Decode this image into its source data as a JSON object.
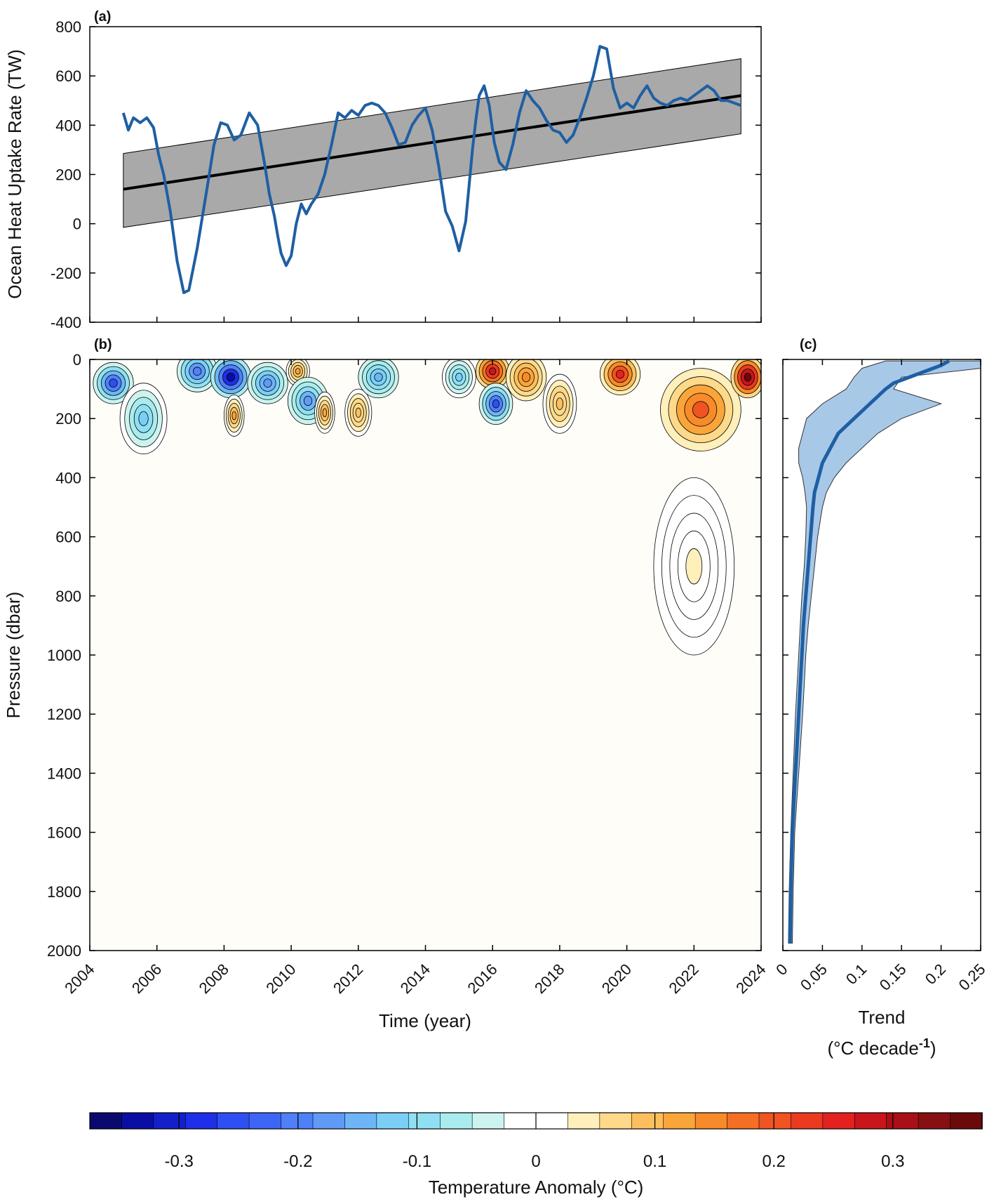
{
  "chart_data": [
    {
      "panel": "(a)",
      "type": "line",
      "ylabel": "Ocean Heat Uptake Rate (TW)",
      "xlim": [
        2004,
        2024
      ],
      "ylim": [
        -400,
        800
      ],
      "yticks": [
        -400,
        -200,
        0,
        200,
        400,
        600,
        800
      ],
      "series": [
        {
          "name": "Ocean heat uptake rate",
          "color": "#1f5fa3",
          "x": [
            2005.0,
            2005.15,
            2005.3,
            2005.5,
            2005.7,
            2005.9,
            2006.05,
            2006.2,
            2006.4,
            2006.6,
            2006.8,
            2006.95,
            2007.2,
            2007.5,
            2007.7,
            2007.9,
            2008.1,
            2008.3,
            2008.5,
            2008.75,
            2009.0,
            2009.2,
            2009.35,
            2009.5,
            2009.6,
            2009.7,
            2009.85,
            2010.0,
            2010.15,
            2010.3,
            2010.45,
            2010.6,
            2010.8,
            2011.0,
            2011.2,
            2011.4,
            2011.6,
            2011.8,
            2012.0,
            2012.2,
            2012.4,
            2012.6,
            2012.8,
            2013.0,
            2013.2,
            2013.4,
            2013.6,
            2013.8,
            2014.0,
            2014.2,
            2014.4,
            2014.6,
            2014.8,
            2015.0,
            2015.2,
            2015.4,
            2015.5,
            2015.6,
            2015.75,
            2015.9,
            2016.05,
            2016.2,
            2016.4,
            2016.6,
            2016.8,
            2017.0,
            2017.2,
            2017.4,
            2017.6,
            2017.8,
            2018.0,
            2018.2,
            2018.4,
            2018.6,
            2018.8,
            2019.0,
            2019.2,
            2019.4,
            2019.6,
            2019.8,
            2020.0,
            2020.2,
            2020.4,
            2020.6,
            2020.8,
            2021.0,
            2021.2,
            2021.4,
            2021.6,
            2021.8,
            2022.0,
            2022.2,
            2022.4,
            2022.6,
            2022.8,
            2023.0,
            2023.2,
            2023.4
          ],
          "y": [
            450,
            380,
            430,
            410,
            430,
            390,
            280,
            200,
            50,
            -150,
            -280,
            -270,
            -100,
            150,
            320,
            410,
            400,
            340,
            360,
            450,
            400,
            250,
            120,
            30,
            -50,
            -120,
            -170,
            -130,
            0,
            80,
            40,
            80,
            120,
            200,
            320,
            450,
            430,
            460,
            440,
            480,
            490,
            480,
            450,
            390,
            320,
            330,
            400,
            440,
            470,
            380,
            230,
            50,
            -10,
            -110,
            10,
            300,
            420,
            520,
            560,
            480,
            330,
            250,
            220,
            320,
            450,
            540,
            500,
            470,
            420,
            380,
            370,
            330,
            360,
            430,
            510,
            600,
            720,
            710,
            550,
            470,
            490,
            470,
            520,
            560,
            510,
            490,
            480,
            500,
            510,
            500,
            520,
            540,
            560,
            540,
            500,
            500,
            490,
            480
          ]
        },
        {
          "name": "Linear trend",
          "color": "#000000",
          "x": [
            2005.0,
            2023.4
          ],
          "y": [
            140,
            520
          ]
        }
      ],
      "confidence_band": {
        "color": "#a9a9a9",
        "x": [
          2005.0,
          2023.4
        ],
        "upper": [
          285,
          670
        ],
        "lower": [
          -15,
          365
        ]
      }
    },
    {
      "panel": "(b)",
      "type": "heatmap",
      "xlabel": "Time (year)",
      "ylabel": "Pressure (dbar)",
      "xlim": [
        2004,
        2024
      ],
      "ylim": [
        2000,
        0
      ],
      "xticks": [
        2004,
        2006,
        2008,
        2010,
        2012,
        2014,
        2016,
        2018,
        2020,
        2022,
        2024
      ],
      "yticks": [
        0,
        200,
        400,
        600,
        800,
        1000,
        1200,
        1400,
        1600,
        1800,
        2000
      ],
      "anomaly_features": [
        {
          "t": 2004.7,
          "p": 80,
          "v": -0.26,
          "wt": 0.6,
          "wp": 70
        },
        {
          "t": 2005.6,
          "p": 200,
          "v": -0.13,
          "wt": 0.7,
          "wp": 120
        },
        {
          "t": 2007.2,
          "p": 40,
          "v": -0.21,
          "wt": 0.6,
          "wp": 70
        },
        {
          "t": 2008.2,
          "p": 60,
          "v": -0.34,
          "wt": 0.6,
          "wp": 70
        },
        {
          "t": 2008.3,
          "p": 190,
          "v": 0.13,
          "wt": 0.3,
          "wp": 70
        },
        {
          "t": 2009.3,
          "p": 80,
          "v": -0.18,
          "wt": 0.6,
          "wp": 70
        },
        {
          "t": 2010.2,
          "p": 40,
          "v": 0.11,
          "wt": 0.35,
          "wp": 50
        },
        {
          "t": 2010.5,
          "p": 140,
          "v": -0.17,
          "wt": 0.6,
          "wp": 80
        },
        {
          "t": 2011.0,
          "p": 180,
          "v": 0.12,
          "wt": 0.3,
          "wp": 70
        },
        {
          "t": 2012.0,
          "p": 180,
          "v": 0.1,
          "wt": 0.4,
          "wp": 80
        },
        {
          "t": 2012.6,
          "p": 60,
          "v": -0.16,
          "wt": 0.6,
          "wp": 70
        },
        {
          "t": 2015.0,
          "p": 60,
          "v": -0.12,
          "wt": 0.5,
          "wp": 70
        },
        {
          "t": 2016.0,
          "p": 40,
          "v": 0.28,
          "wt": 0.5,
          "wp": 60
        },
        {
          "t": 2016.1,
          "p": 150,
          "v": -0.26,
          "wt": 0.5,
          "wp": 70
        },
        {
          "t": 2017.0,
          "p": 60,
          "v": 0.14,
          "wt": 0.6,
          "wp": 80
        },
        {
          "t": 2018.0,
          "p": 150,
          "v": 0.1,
          "wt": 0.5,
          "wp": 100
        },
        {
          "t": 2019.8,
          "p": 50,
          "v": 0.26,
          "wt": 0.6,
          "wp": 70
        },
        {
          "t": 2022.2,
          "p": 170,
          "v": 0.2,
          "wt": 1.2,
          "wp": 140
        },
        {
          "t": 2023.6,
          "p": 60,
          "v": 0.36,
          "wt": 0.5,
          "wp": 70
        },
        {
          "t": 2022.0,
          "p": 700,
          "v": 0.03,
          "wt": 1.2,
          "wp": 300
        }
      ]
    },
    {
      "panel": "(c)",
      "type": "line",
      "xlabel_line1": "Trend",
      "xlabel_line2": "(°C decade",
      "xlabel_sup": "-1",
      "xlabel_close": ")",
      "xlim": [
        0,
        0.25
      ],
      "xticks": [
        "0",
        "0.05",
        "0.1",
        "0.15",
        "0.2",
        "0.25"
      ],
      "ylim": [
        2000,
        0
      ],
      "series": [
        {
          "name": "Trend profile",
          "color": "#1f5fa3",
          "p": [
            5,
            20,
            50,
            80,
            100,
            150,
            200,
            250,
            300,
            350,
            400,
            450,
            500,
            600,
            700,
            800,
            900,
            1000,
            1100,
            1200,
            1400,
            1600,
            1800,
            1975
          ],
          "t": [
            0.21,
            0.2,
            0.17,
            0.14,
            0.13,
            0.11,
            0.09,
            0.07,
            0.06,
            0.05,
            0.045,
            0.04,
            0.038,
            0.035,
            0.032,
            0.029,
            0.026,
            0.024,
            0.022,
            0.02,
            0.016,
            0.012,
            0.01,
            0.009
          ]
        }
      ],
      "band": {
        "color": "#a8c8e8",
        "p": [
          5,
          30,
          60,
          100,
          150,
          200,
          250,
          300,
          350,
          400,
          450,
          500,
          600,
          700,
          800,
          900,
          1000,
          1100,
          1200,
          1400,
          1600,
          1800,
          1975
        ],
        "lower": [
          0.13,
          0.1,
          0.09,
          0.08,
          0.05,
          0.03,
          0.025,
          0.02,
          0.02,
          0.025,
          0.028,
          0.03,
          0.029,
          0.027,
          0.024,
          0.022,
          0.02,
          0.018,
          0.016,
          0.013,
          0.01,
          0.008,
          0.007
        ],
        "upper": [
          0.25,
          0.25,
          0.15,
          0.14,
          0.2,
          0.15,
          0.12,
          0.1,
          0.08,
          0.065,
          0.055,
          0.05,
          0.044,
          0.04,
          0.036,
          0.032,
          0.029,
          0.027,
          0.025,
          0.02,
          0.015,
          0.013,
          0.012
        ]
      }
    },
    {
      "type": "colorbar",
      "label": "Temperature Anomaly (°C)",
      "ticks": [
        {
          "v": -0.3,
          "label": "-0.3"
        },
        {
          "v": -0.2,
          "label": "-0.2"
        },
        {
          "v": -0.1,
          "label": "-0.1"
        },
        {
          "v": 0,
          "label": "0"
        },
        {
          "v": 0.1,
          "label": "0.1"
        },
        {
          "v": 0.2,
          "label": "0.2"
        },
        {
          "v": 0.3,
          "label": "0.3"
        }
      ],
      "range": [
        -0.375,
        0.375
      ],
      "colors": [
        "#0a0a6e",
        "#0a0ea3",
        "#1320c9",
        "#1f2fe8",
        "#2f4ff2",
        "#3e66f5",
        "#4e80f7",
        "#5f9af7",
        "#6eb5f7",
        "#7bcff7",
        "#8ee0f2",
        "#a9ecee",
        "#cdf3ef",
        "#ffffff",
        "#ffffff",
        "#ffefba",
        "#fed98a",
        "#fdbf5e",
        "#f9a53a",
        "#f78a2a",
        "#f46f24",
        "#ef5422",
        "#ea3a20",
        "#e3221f",
        "#c8161c",
        "#a80f16",
        "#871012",
        "#6a0a0a"
      ]
    }
  ],
  "labels": {
    "panel_a": "(a)",
    "panel_b": "(b)",
    "panel_c": "(c)"
  }
}
